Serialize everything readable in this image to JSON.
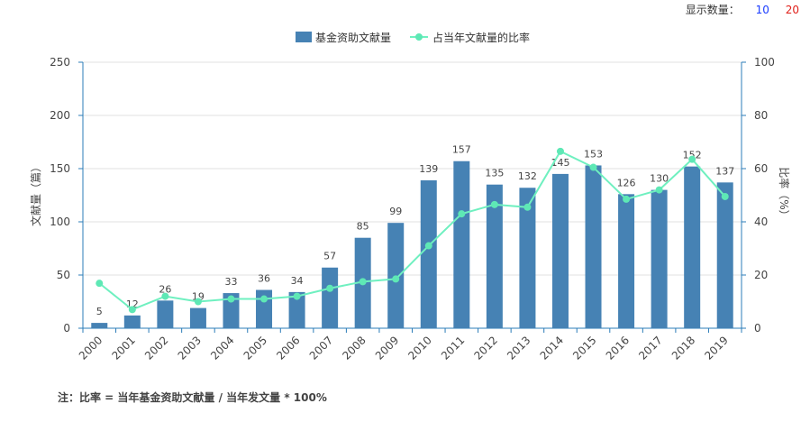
{
  "controls": {
    "label": "显示数量：",
    "options": [
      {
        "text": "10",
        "color": "#1a3cff"
      },
      {
        "text": "20",
        "color": "#e0201a"
      }
    ]
  },
  "footnote": "注：比率 = 当年基金资助文献量 / 当年发文量 * 100%",
  "colors": {
    "bar": "#4682b4",
    "line": "#6ff0c0",
    "marker": "#5ee8b5",
    "axis": "#2b7cb8"
  },
  "chart_data": {
    "type": "bar",
    "categories": [
      "2000",
      "2001",
      "2002",
      "2003",
      "2004",
      "2005",
      "2006",
      "2007",
      "2008",
      "2009",
      "2010",
      "2011",
      "2012",
      "2013",
      "2014",
      "2015",
      "2016",
      "2017",
      "2018",
      "2019"
    ],
    "series": [
      {
        "name": "基金资助文献量",
        "type": "bar",
        "axis": "left",
        "values": [
          5,
          12,
          26,
          19,
          33,
          36,
          34,
          57,
          85,
          99,
          139,
          157,
          135,
          132,
          145,
          153,
          126,
          130,
          152,
          137
        ]
      },
      {
        "name": "占当年文献量的比率",
        "type": "line",
        "axis": "right",
        "values": [
          16.9,
          7,
          12,
          10,
          11,
          11,
          12,
          15,
          17.5,
          18.5,
          31,
          43,
          46.5,
          45.5,
          66.5,
          60.5,
          48.5,
          52,
          63.5,
          49.5
        ]
      }
    ],
    "ylabel": "文献量（篇）",
    "y2label": "比率（%）",
    "ylim": [
      0,
      250
    ],
    "yticks": [
      0,
      50,
      100,
      150,
      200,
      250
    ],
    "y2lim": [
      0,
      100
    ],
    "y2ticks": [
      0,
      20,
      40,
      60,
      80,
      100
    ],
    "legend_position": "top-center",
    "grid": true
  }
}
